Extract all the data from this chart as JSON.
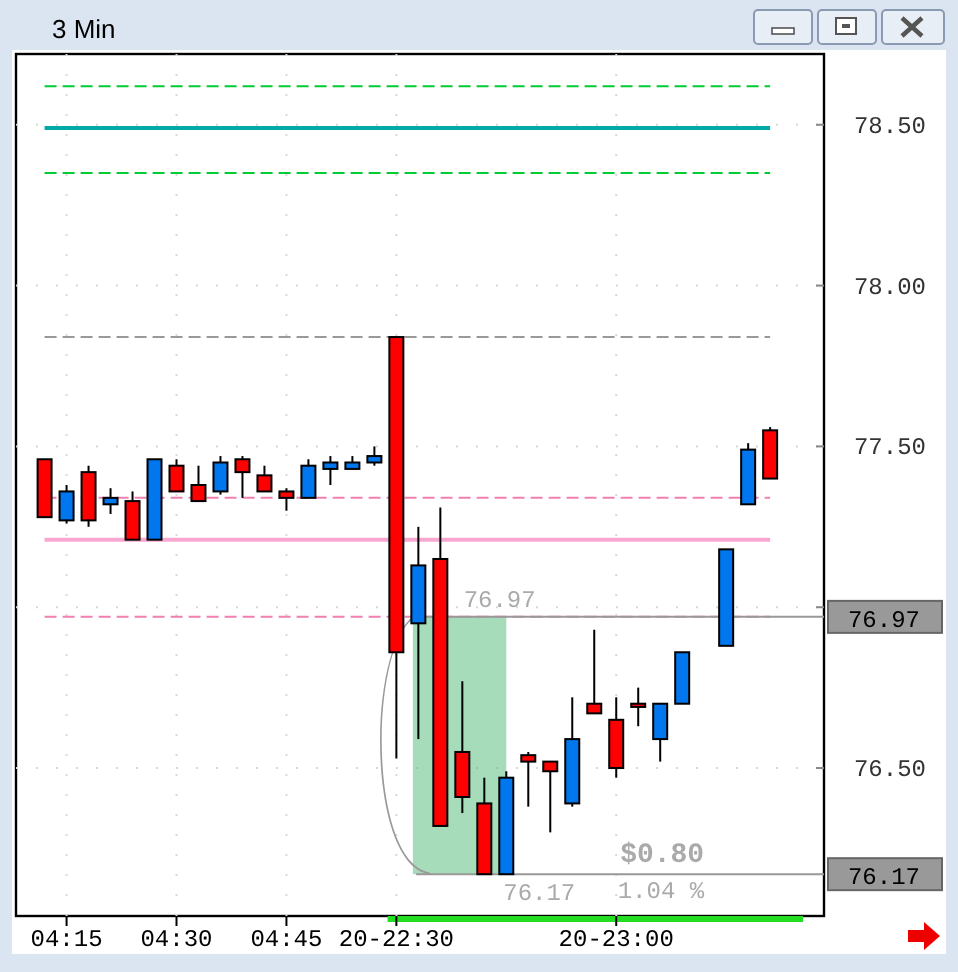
{
  "chart_data": {
    "type": "candlestick",
    "title": "3 Min",
    "categories": [
      null,
      "04:15",
      null,
      null,
      null,
      null,
      "04:30",
      null,
      null,
      null,
      null,
      "04:45",
      null,
      null,
      null,
      null,
      "20-22:30",
      null,
      null,
      null,
      null,
      null,
      null,
      null,
      null,
      null,
      "20-23:00",
      null,
      null,
      null,
      null,
      null,
      null,
      null
    ],
    "ohlc": [
      [
        77.46,
        77.46,
        77.28,
        77.28
      ],
      [
        77.27,
        77.38,
        77.26,
        77.36
      ],
      [
        77.42,
        77.44,
        77.25,
        77.27
      ],
      [
        77.32,
        77.37,
        77.29,
        77.34
      ],
      [
        77.33,
        77.36,
        77.21,
        77.21
      ],
      [
        77.21,
        77.46,
        77.21,
        77.46
      ],
      [
        77.44,
        77.46,
        77.36,
        77.36
      ],
      [
        77.38,
        77.44,
        77.33,
        77.33
      ],
      [
        77.36,
        77.47,
        77.35,
        77.45
      ],
      [
        77.46,
        77.47,
        77.34,
        77.42
      ],
      [
        77.41,
        77.44,
        77.36,
        77.36
      ],
      [
        77.36,
        77.37,
        77.3,
        77.34
      ],
      [
        77.34,
        77.46,
        77.34,
        77.44
      ],
      [
        77.43,
        77.47,
        77.38,
        77.45
      ],
      [
        77.43,
        77.47,
        77.43,
        77.45
      ],
      [
        77.45,
        77.5,
        77.44,
        77.47
      ],
      [
        77.84,
        77.84,
        76.53,
        76.86
      ],
      [
        76.95,
        77.25,
        76.59,
        77.13
      ],
      [
        77.15,
        77.31,
        76.32,
        76.32
      ],
      [
        76.55,
        76.77,
        76.36,
        76.41
      ],
      [
        76.39,
        76.47,
        76.17,
        76.17
      ],
      [
        76.17,
        76.49,
        76.17,
        76.47
      ],
      [
        76.54,
        76.55,
        76.38,
        76.52
      ],
      [
        76.52,
        76.52,
        76.3,
        76.49
      ],
      [
        76.39,
        76.72,
        76.38,
        76.59
      ],
      [
        76.7,
        76.93,
        76.67,
        76.67
      ],
      [
        76.65,
        76.72,
        76.47,
        76.5
      ],
      [
        76.7,
        76.75,
        76.63,
        76.69
      ],
      [
        76.59,
        76.7,
        76.52,
        76.7
      ],
      [
        76.7,
        76.86,
        76.7,
        76.86
      ],
      null,
      [
        76.88,
        77.18,
        76.88,
        77.18
      ],
      [
        77.32,
        77.51,
        77.32,
        77.49
      ],
      [
        77.55,
        77.56,
        77.4,
        77.4
      ]
    ],
    "colors": [
      "#ff0000",
      "#0077ee",
      "#ff0000",
      "#0077ee",
      "#ff0000",
      "#0077ee",
      "#ff0000",
      "#ff0000",
      "#0077ee",
      "#ff0000",
      "#ff0000",
      "#ff0000",
      "#0077ee",
      "#0077ee",
      "#0077ee",
      "#0077ee",
      "#ff0000",
      "#0077ee",
      "#ff0000",
      "#ff0000",
      "#ff0000",
      "#0077ee",
      "#ff0000",
      "#ff0000",
      "#0077ee",
      "#ff0000",
      "#ff0000",
      "#ff0000",
      "#0077ee",
      "#0077ee",
      null,
      "#0077ee",
      "#0077ee",
      "#ff0000"
    ],
    "ylim": [
      76.04,
      78.72
    ],
    "yticks": [
      {
        "value": 76.5,
        "label": "76.50"
      },
      {
        "value": 77,
        "label": null
      },
      {
        "value": 77.5,
        "label": "77.50"
      },
      {
        "value": 78,
        "label": "78.00"
      },
      {
        "value": 78.5,
        "label": "78.50"
      }
    ],
    "grid": true,
    "ref_lines": [
      {
        "axis": "y",
        "value": 78.62,
        "color": "#00cc33",
        "line_style": "dashed"
      },
      {
        "axis": "y",
        "value": 78.49,
        "color": "#00aaaa",
        "line_style": "solid"
      },
      {
        "axis": "y",
        "value": 78.35,
        "color": "#00cc33",
        "line_style": "dashed"
      },
      {
        "axis": "y",
        "value": 77.84,
        "color": "#999999",
        "line_style": "dashed"
      },
      {
        "axis": "y",
        "value": 77.34,
        "color": "#f080b0",
        "line_style": "dashed"
      },
      {
        "axis": "y",
        "value": 77.21,
        "color": "#f8a8d0",
        "line_style": "solid"
      },
      {
        "axis": "y",
        "value": 76.97,
        "color": "#f080b0",
        "line_style": "dashed"
      },
      {
        "axis": "y",
        "value": 76.97,
        "label": "76.97",
        "color": "#999999",
        "line_style": "solid"
      },
      {
        "axis": "y",
        "value": 76.17,
        "label": "76.17",
        "color": "#999999",
        "line_style": "solid"
      }
    ],
    "annotations": [
      {
        "text": "76.97",
        "y": 76.97
      },
      {
        "text": "76.17",
        "y": 76.17
      },
      {
        "text": "$0.80",
        "y": 76.17
      },
      {
        "text": "1.04 %",
        "y": 76.17
      }
    ]
  }
}
